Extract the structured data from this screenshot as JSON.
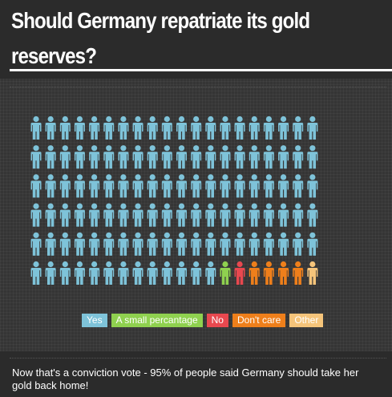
{
  "page": {
    "title_line1": "Should Germany repatriate its gold",
    "title_line2": "reserves?",
    "caption": "Now that's a conviction vote - 95% of people said Germany should take her gold back home!"
  },
  "chart_data": {
    "type": "pictogram",
    "title": "Should Germany repatriate its gold reserves?",
    "rows": 6,
    "columns": 20,
    "series": [
      {
        "name": "Yes",
        "count": 113,
        "color": "#7ec3d9"
      },
      {
        "name": "A small percantage",
        "count": 1,
        "color": "#8fd14f"
      },
      {
        "name": "No",
        "count": 1,
        "color": "#e8484f"
      },
      {
        "name": "Don't care",
        "count": 4,
        "color": "#ee7f1b"
      },
      {
        "name": "Other",
        "count": 1,
        "color": "#f5c47a"
      }
    ],
    "legend": {
      "position": "bottom-center",
      "items": [
        {
          "label": "Yes",
          "color": "#7ec3d9"
        },
        {
          "label": "A small percantage",
          "color": "#8fd14f"
        },
        {
          "label": "No",
          "color": "#e8484f"
        },
        {
          "label": "Don't care",
          "color": "#ee7f1b"
        },
        {
          "label": "Other",
          "color": "#f5c47a"
        }
      ]
    }
  }
}
